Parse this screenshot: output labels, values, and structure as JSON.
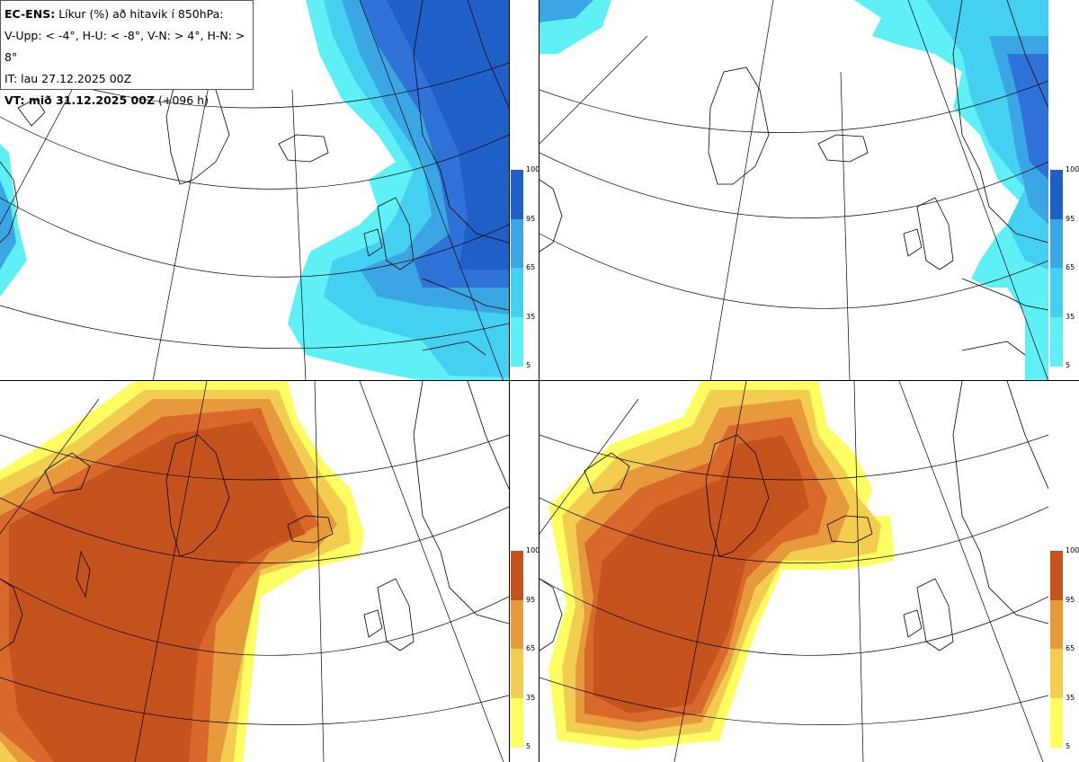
{
  "header": {
    "model": "EC-ENS:",
    "title": "Líkur (%) að hitavik í 850hPa:",
    "thresholds": "V-Upp: < -4°, H-U: < -8°, V-N: > 4°, H-N: > 8°",
    "init_time": "IT: lau 27.12.2025 00Z",
    "valid_label": "VT: mið 31.12.2025 00Z",
    "lead": "(+096 h)"
  },
  "colorbar_ticks": [
    "100",
    "95",
    "65",
    "35",
    "5"
  ],
  "colors": {
    "cold_scale": [
      "#5ef0f5",
      "#44d0f0",
      "#3aa7e4",
      "#2f72d8",
      "#1f5fc8"
    ],
    "warm_scale": [
      "#fefe60",
      "#f3cd50",
      "#e69a3c",
      "#d8692a",
      "#c5531d"
    ],
    "land_outline": "#000000",
    "grid": "#000000"
  },
  "panels": [
    {
      "name": "V-Upp",
      "variable": "probability anomaly < -4°C",
      "scale": "cold"
    },
    {
      "name": "H-U",
      "variable": "probability anomaly < -8°C",
      "scale": "cold"
    },
    {
      "name": "V-N",
      "variable": "probability anomaly > 4°C",
      "scale": "warm"
    },
    {
      "name": "H-N",
      "variable": "probability anomaly > 8°C",
      "scale": "warm"
    }
  ]
}
